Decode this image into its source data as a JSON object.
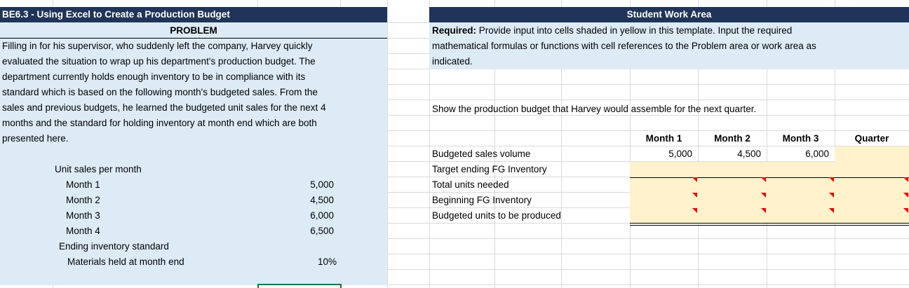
{
  "header": {
    "title": "BE6.3 - Using Excel to Create a Production Budget",
    "section": "PROBLEM",
    "work_area": "Student Work Area"
  },
  "problem": {
    "paragraph": [
      "Filling in for his supervisor, who suddenly left the company, Harvey quickly",
      "evaluated the situation to wrap up his department's production budget. The",
      "department currently holds enough inventory to be in compliance with its",
      "standard which is based on the following month's budgeted sales. From the",
      "sales and previous budgets, he learned the budgeted unit sales for the next 4",
      "months and the standard for holding inventory at month end which are both",
      "presented here."
    ],
    "unit_sales_label": "Unit sales per month",
    "months": [
      {
        "label": "Month 1",
        "value": "5,000"
      },
      {
        "label": "Month 2",
        "value": "4,500"
      },
      {
        "label": "Month 3",
        "value": "6,000"
      },
      {
        "label": "Month 4",
        "value": "6,500"
      }
    ],
    "inventory_label": "Ending inventory standard",
    "materials_label": "Materials held at month end",
    "materials_value": "10%"
  },
  "work": {
    "required_label": "Required:",
    "required_text": [
      " Provide input into cells shaded in yellow in this template. Input the required",
      "mathematical formulas or functions with cell references to the Problem area or work area as",
      "indicated."
    ],
    "instruction": "Show the production budget that Harvey would assemble for the next quarter.",
    "columns": [
      "Month 1",
      "Month 2",
      "Month 3",
      "Quarter"
    ],
    "rows": [
      {
        "label": "Budgeted sales volume",
        "values": [
          "5,000",
          "4,500",
          "6,000"
        ]
      },
      {
        "label": "Target ending FG Inventory"
      },
      {
        "label": "Total units needed"
      },
      {
        "label": "Beginning FG Inventory"
      },
      {
        "label": "Budgeted units to be produced"
      }
    ]
  }
}
